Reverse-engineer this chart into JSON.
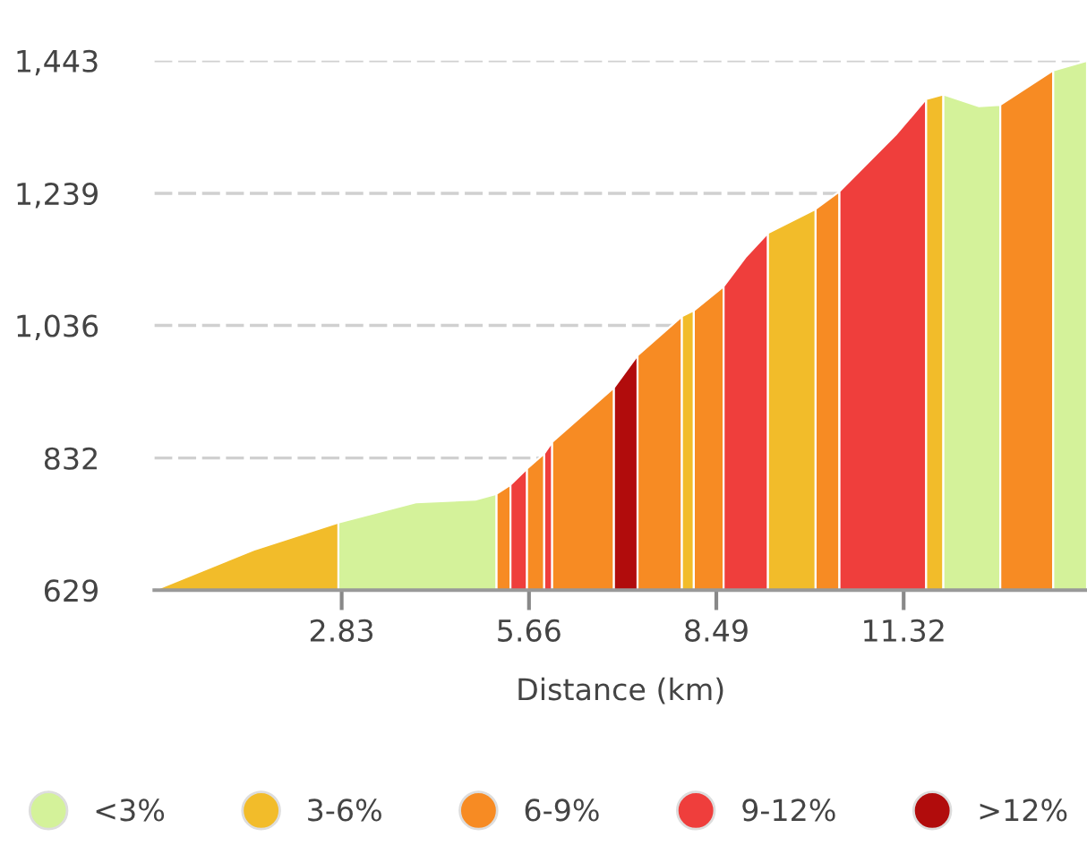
{
  "chart_data": {
    "type": "area",
    "xlabel": "Distance (km)",
    "series": [
      {
        "name": "<3%",
        "color": "#d4f29a",
        "x": [
          2.78,
          3.95,
          4.85,
          5.17
        ],
        "values": [
          733,
          764,
          768,
          777
        ]
      },
      {
        "name": "3-6%",
        "color": "#f2bc2a",
        "x": [
          0,
          1.5,
          2.78
        ],
        "values": [
          629,
          691,
          733
        ]
      },
      {
        "name": "6-9%",
        "color": "#f78b23",
        "x": [
          5.17,
          5.38
        ],
        "values": [
          777,
          791
        ]
      },
      {
        "name": "9-12%",
        "color": "#ef3e3c",
        "x": [
          5.38,
          5.63
        ],
        "values": [
          791,
          816
        ]
      },
      {
        "name": ">12%",
        "color": "#b10c0c",
        "x": [
          6.94,
          7.3
        ],
        "values": [
          940,
          990
        ]
      },
      {
        "color": "#f78b23",
        "x": [
          5.63,
          5.89
        ],
        "values": [
          816,
          839
        ]
      },
      {
        "color": "#ef3e3c",
        "x": [
          5.89,
          6.01
        ],
        "values": [
          839,
          857
        ]
      },
      {
        "color": "#f78b23",
        "x": [
          6.01,
          6.94
        ],
        "values": [
          857,
          940
        ]
      },
      {
        "color": "#f78b23",
        "x": [
          7.3,
          7.97
        ],
        "values": [
          990,
          1050
        ]
      },
      {
        "color": "#f2bc2a",
        "x": [
          7.97,
          8.15
        ],
        "values": [
          1050,
          1059
        ]
      },
      {
        "color": "#f78b23",
        "x": [
          8.15,
          8.6
        ],
        "values": [
          1059,
          1096
        ]
      },
      {
        "color": "#ef3e3c",
        "x": [
          8.6,
          8.94,
          9.27
        ],
        "values": [
          1096,
          1142,
          1178
        ]
      },
      {
        "color": "#f2bc2a",
        "x": [
          9.27,
          9.99
        ],
        "values": [
          1178,
          1215
        ]
      },
      {
        "color": "#f78b23",
        "x": [
          9.99,
          10.35
        ],
        "values": [
          1215,
          1242
        ]
      },
      {
        "color": "#ef3e3c",
        "x": [
          10.35,
          11.2,
          11.66
        ],
        "values": [
          1242,
          1329,
          1384
        ]
      },
      {
        "color": "#f2bc2a",
        "x": [
          11.66,
          11.92
        ],
        "values": [
          1384,
          1391
        ]
      },
      {
        "color": "#d4f29a",
        "x": [
          11.92,
          12.46,
          12.78
        ],
        "values": [
          1391,
          1373,
          1375
        ]
      },
      {
        "color": "#f78b23",
        "x": [
          12.78,
          13.58
        ],
        "values": [
          1375,
          1428
        ]
      },
      {
        "color": "#d4f29a",
        "x": [
          13.58,
          14.09
        ],
        "values": [
          1428,
          1443
        ]
      }
    ],
    "xlim": [
      0,
      14.09
    ],
    "xticks": [
      2.83,
      5.66,
      8.49,
      11.32
    ],
    "ylim": [
      629,
      1443
    ],
    "yticks": [
      {
        "value": 629,
        "label": "629"
      },
      {
        "value": 832,
        "label": "832"
      },
      {
        "value": 1036,
        "label": "1,036"
      },
      {
        "value": 1239,
        "label": "1,239"
      },
      {
        "value": 1443,
        "label": "1,443"
      }
    ],
    "grid": "y",
    "legend": "bottom"
  }
}
